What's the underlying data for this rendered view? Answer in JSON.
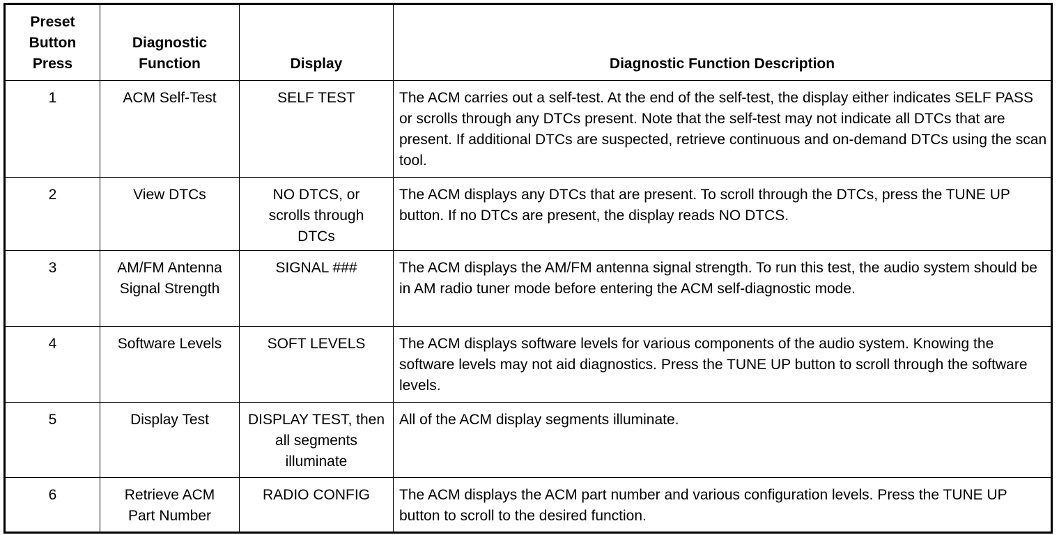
{
  "headers": [
    "Preset Button Press",
    "Diagnostic Function",
    "Display",
    "Diagnostic Function Description"
  ],
  "rows": [
    {
      "press": "1",
      "function": "ACM Self-Test",
      "display": "SELF TEST",
      "description": "The ACM carries out a self-test. At the end of the self-test, the display either indicates SELF PASS or scrolls through any DTCs present. Note that the self-test may not indicate all DTCs that are present. If additional DTCs are suspected, retrieve continuous and on-demand DTCs using the scan tool."
    },
    {
      "press": "2",
      "function": "View DTCs",
      "display": "NO DTCS, or scrolls through DTCs",
      "description": "The ACM displays any DTCs that are present. To scroll through the DTCs, press the TUNE UP button. If no DTCs are present, the display reads NO DTCS."
    },
    {
      "press": "3",
      "function": "AM/FM Antenna Signal Strength",
      "display": "SIGNAL ###",
      "description": "The ACM displays the AM/FM antenna signal strength. To run this test, the audio system should be in AM radio tuner mode before entering the ACM self-diagnostic mode."
    },
    {
      "press": "4",
      "function": "Software Levels",
      "display": "SOFT LEVELS",
      "description": "The ACM displays software levels for various components of the audio system. Knowing the software levels may not aid diagnostics. Press the TUNE UP button to scroll through the software levels."
    },
    {
      "press": "5",
      "function": "Display Test",
      "display": "DISPLAY TEST, then all segments illuminate",
      "description": "All of the ACM display segments illuminate."
    },
    {
      "press": "6",
      "function": "Retrieve ACM Part Number",
      "display": "RADIO CONFIG",
      "description": "The ACM displays the ACM part number and various configuration levels. Press the TUNE UP button to scroll to the desired function."
    }
  ]
}
